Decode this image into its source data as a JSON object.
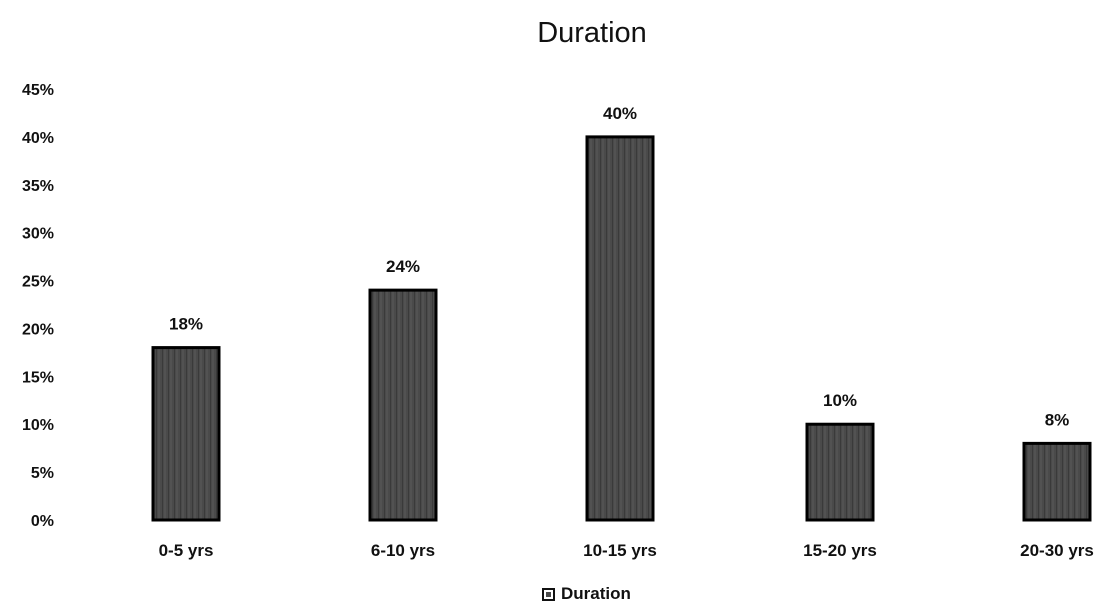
{
  "chart_data": {
    "type": "bar",
    "title": "Duration",
    "categories": [
      "0-5 yrs",
      "6-10 yrs",
      "10-15 yrs",
      "15-20 yrs",
      "20-30 yrs"
    ],
    "series": [
      {
        "name": "Duration",
        "values": [
          18,
          24,
          40,
          10,
          8
        ],
        "data_labels": [
          "18%",
          "24%",
          "40%",
          "10%",
          "8%"
        ]
      }
    ],
    "y_ticks": [
      "0%",
      "5%",
      "10%",
      "15%",
      "20%",
      "25%",
      "30%",
      "35%",
      "40%",
      "45%"
    ],
    "ylim": [
      0,
      45
    ],
    "xlabel": "",
    "ylabel": "",
    "grid": false,
    "legend_position": "bottom",
    "colors": {
      "bar_fill": "#4a4a4a",
      "bar_stroke": "#000000",
      "text": "#111111"
    }
  }
}
